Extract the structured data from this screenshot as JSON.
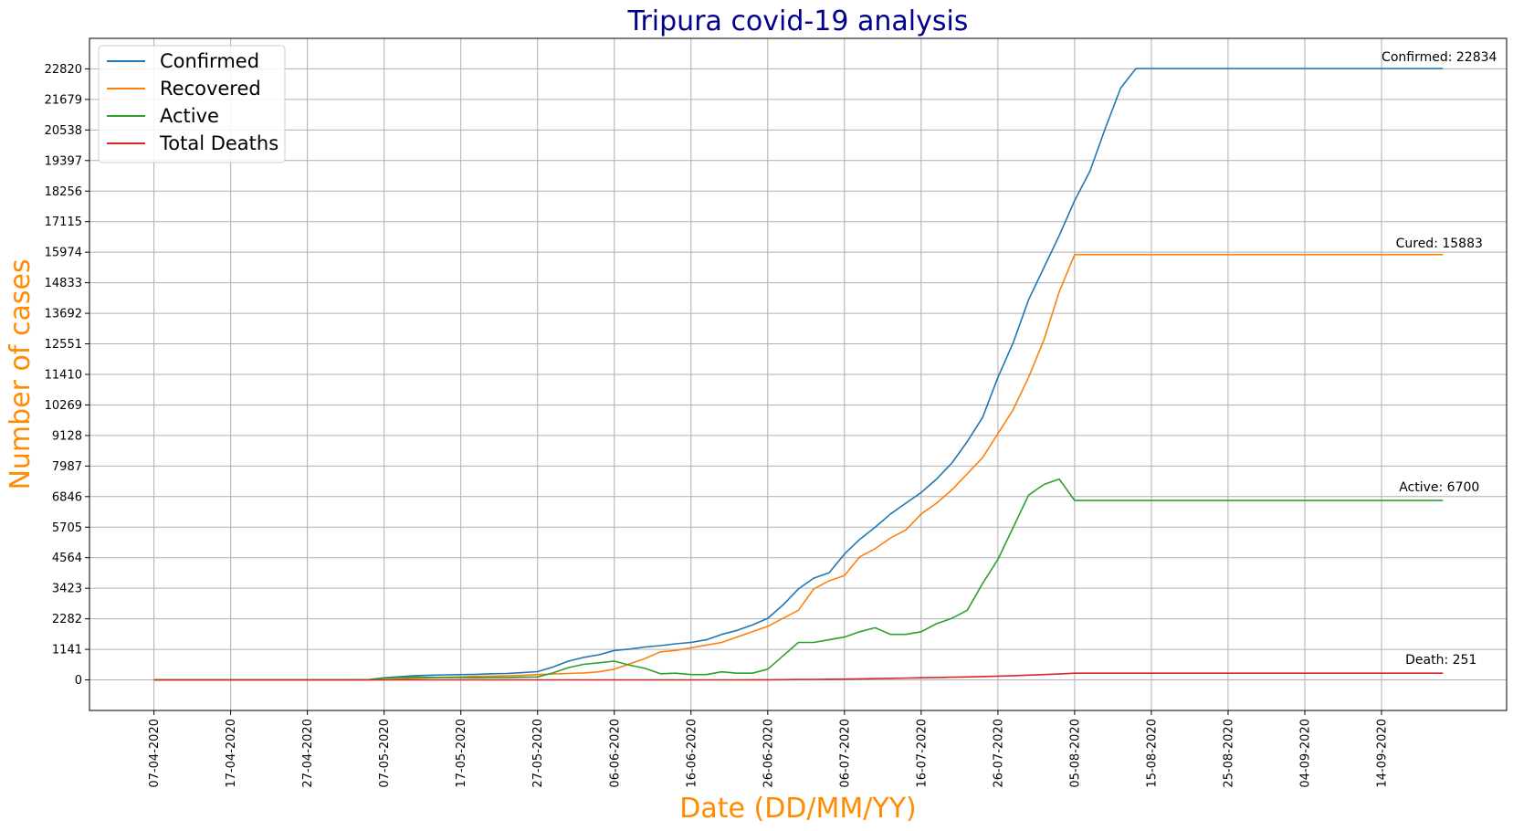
{
  "chart_data": {
    "type": "line",
    "title": "Tripura covid-19 analysis",
    "xlabel": "Date (DD/MM/YY)",
    "ylabel": "Number of cases",
    "x_tick_labels": [
      "07-04-2020",
      "17-04-2020",
      "27-04-2020",
      "07-05-2020",
      "17-05-2020",
      "27-05-2020",
      "06-06-2020",
      "16-06-2020",
      "26-06-2020",
      "06-07-2020",
      "16-07-2020",
      "26-07-2020",
      "05-08-2020",
      "15-08-2020",
      "25-08-2020",
      "04-09-2020",
      "14-09-2020"
    ],
    "y_ticks": [
      0,
      1141,
      2282,
      3423,
      4564,
      5705,
      6846,
      7987,
      9128,
      10269,
      11410,
      12551,
      13692,
      14833,
      15974,
      17115,
      18256,
      19397,
      20538,
      21679,
      22820
    ],
    "ylim": [
      -1141,
      23960
    ],
    "xlim_days": [
      -8.4,
      176.3
    ],
    "grid": true,
    "legend_position": "top-left",
    "x_days_from_first": [
      0,
      5,
      10,
      15,
      20,
      25,
      28,
      30,
      32,
      34,
      36,
      38,
      40,
      42,
      44,
      46,
      48,
      50,
      52,
      54,
      56,
      58,
      60,
      62,
      64,
      66,
      68,
      70,
      72,
      74,
      76,
      78,
      80,
      82,
      84,
      86,
      88,
      90,
      92,
      94,
      96,
      98,
      100,
      102,
      104,
      106,
      108,
      110,
      112,
      114,
      116,
      118,
      120,
      122,
      124,
      126,
      128,
      130,
      132,
      134,
      136,
      138,
      140,
      142,
      144,
      146,
      148,
      150,
      152,
      154,
      156,
      158,
      160,
      162,
      164,
      166,
      168
    ],
    "series": [
      {
        "name": "Confirmed",
        "color": "#1f77b4",
        "values": [
          2,
          2,
          2,
          2,
          2,
          2,
          10,
          80,
          120,
          160,
          175,
          190,
          200,
          210,
          230,
          240,
          270,
          310,
          480,
          700,
          840,
          940,
          1100,
          1150,
          1230,
          1280,
          1350,
          1400,
          1500,
          1700,
          1850,
          2050,
          2300,
          2800,
          3400,
          3800,
          4000,
          4700,
          5250,
          5700,
          6200,
          6600,
          7000,
          7500,
          8100,
          8900,
          9800,
          11300,
          12600,
          14200,
          15400,
          16600,
          17900,
          19000,
          20600,
          22100,
          22834,
          22834,
          22834,
          22834,
          22834,
          22834,
          22834,
          22834,
          22834,
          22834,
          22834,
          22834,
          22834,
          22834,
          22834,
          22834,
          22834,
          22834,
          22834,
          22834,
          22834
        ]
      },
      {
        "name": "Recovered",
        "color": "#ff7f0e",
        "values": [
          0,
          0,
          0,
          0,
          0,
          0,
          0,
          10,
          30,
          60,
          80,
          100,
          110,
          130,
          140,
          150,
          170,
          200,
          220,
          240,
          260,
          300,
          400,
          600,
          800,
          1050,
          1100,
          1200,
          1300,
          1400,
          1600,
          1800,
          2000,
          2300,
          2600,
          3400,
          3700,
          3900,
          4600,
          4900,
          5300,
          5600,
          6200,
          6600,
          7100,
          7700,
          8300,
          9200,
          10100,
          11300,
          12700,
          14500,
          15883,
          15883,
          15883,
          15883,
          15883,
          15883,
          15883,
          15883,
          15883,
          15883,
          15883,
          15883,
          15883,
          15883,
          15883,
          15883,
          15883,
          15883,
          15883,
          15883,
          15883,
          15883,
          15883,
          15883,
          15883
        ]
      },
      {
        "name": "Active",
        "color": "#2ca02c",
        "values": [
          2,
          2,
          2,
          2,
          2,
          2,
          10,
          70,
          90,
          100,
          95,
          90,
          90,
          80,
          90,
          90,
          100,
          110,
          260,
          460,
          580,
          640,
          700,
          550,
          430,
          230,
          250,
          200,
          200,
          300,
          250,
          250,
          400,
          900,
          1400,
          1400,
          1500,
          1600,
          1800,
          1950,
          1700,
          1700,
          1800,
          2100,
          2300,
          2600,
          3600,
          4500,
          5700,
          6900,
          7300,
          7500,
          6700,
          6700,
          6700,
          6700,
          6700,
          6700,
          6700,
          6700,
          6700,
          6700,
          6700,
          6700,
          6700,
          6700,
          6700,
          6700,
          6700,
          6700,
          6700,
          6700,
          6700,
          6700,
          6700,
          6700,
          6700
        ]
      },
      {
        "name": "Total Deaths",
        "color": "#d62728",
        "values": [
          0,
          0,
          0,
          0,
          0,
          0,
          0,
          0,
          0,
          0,
          0,
          0,
          0,
          0,
          0,
          0,
          0,
          0,
          0,
          0,
          0,
          1,
          1,
          1,
          1,
          1,
          1,
          1,
          2,
          2,
          3,
          4,
          6,
          10,
          15,
          20,
          25,
          30,
          40,
          50,
          60,
          70,
          80,
          90,
          100,
          110,
          125,
          140,
          160,
          180,
          200,
          220,
          251,
          251,
          251,
          251,
          251,
          251,
          251,
          251,
          251,
          251,
          251,
          251,
          251,
          251,
          251,
          251,
          251,
          251,
          251,
          251,
          251,
          251,
          251,
          251,
          251
        ]
      }
    ],
    "annotations": [
      {
        "text": "Confirmed: 22834",
        "series": "Confirmed"
      },
      {
        "text": "Cured: 15883",
        "series": "Recovered"
      },
      {
        "text": "Active: 6700",
        "series": "Active"
      },
      {
        "text": "Death: 251",
        "series": "Total Deaths"
      }
    ]
  }
}
